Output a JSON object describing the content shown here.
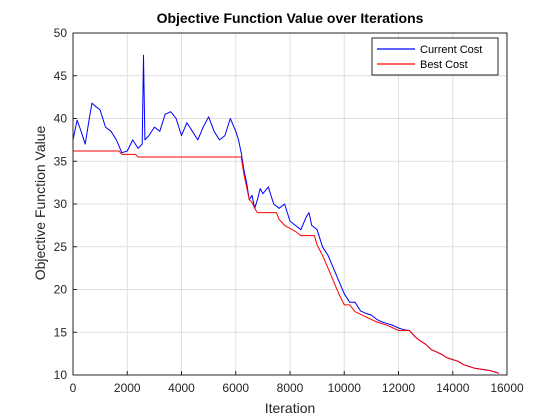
{
  "chart_data": {
    "type": "line",
    "title": "Objective Function Value over Iterations",
    "xlabel": "Iteration",
    "ylabel": "Objective Function Value",
    "xlim": [
      0,
      16000
    ],
    "ylim": [
      10,
      50
    ],
    "x_ticks": [
      0,
      2000,
      4000,
      6000,
      8000,
      10000,
      12000,
      14000,
      16000
    ],
    "y_ticks": [
      10,
      15,
      20,
      25,
      30,
      35,
      40,
      45,
      50
    ],
    "grid": true,
    "legend_position": "top-right",
    "series": [
      {
        "name": "Current Cost",
        "color": "#0000ff",
        "x": [
          0,
          150,
          300,
          450,
          600,
          700,
          800,
          1000,
          1200,
          1400,
          1600,
          1800,
          2000,
          2200,
          2400,
          2550,
          2600,
          2650,
          2800,
          3000,
          3200,
          3400,
          3600,
          3800,
          4000,
          4200,
          4400,
          4600,
          4800,
          5000,
          5200,
          5400,
          5600,
          5800,
          6000,
          6100,
          6200,
          6300,
          6400,
          6500,
          6600,
          6700,
          6800,
          6900,
          7000,
          7200,
          7400,
          7600,
          7800,
          8000,
          8200,
          8400,
          8600,
          8700,
          8800,
          9000,
          9200,
          9400,
          9600,
          9800,
          10000,
          10200,
          10400,
          10600,
          10800,
          11000,
          11200,
          11400,
          11600,
          11800,
          12000,
          12200,
          12400,
          12600,
          12800,
          13000,
          13200,
          13400,
          13600,
          13800,
          14000,
          14200,
          14400,
          14600,
          14800,
          15000,
          15200,
          15400,
          15600,
          15700
        ],
        "y": [
          37.5,
          39.8,
          38.5,
          37.0,
          40.0,
          41.8,
          41.5,
          41.0,
          39.0,
          38.5,
          37.5,
          36.0,
          36.2,
          37.5,
          36.5,
          37.0,
          47.4,
          37.5,
          38.0,
          39.0,
          38.5,
          40.5,
          40.8,
          40.0,
          38.0,
          39.5,
          38.5,
          37.5,
          39.0,
          40.2,
          38.5,
          37.5,
          38.0,
          40.0,
          38.5,
          37.5,
          36.0,
          34.0,
          32.5,
          30.5,
          31.0,
          29.5,
          30.5,
          31.8,
          31.2,
          32.0,
          30.0,
          29.5,
          30.0,
          28.0,
          27.5,
          27.0,
          28.5,
          29.0,
          27.5,
          27.0,
          25.0,
          24.0,
          22.5,
          21.0,
          19.5,
          18.5,
          18.5,
          17.5,
          17.2,
          17.0,
          16.5,
          16.2,
          16.0,
          15.8,
          15.5,
          15.3,
          15.2,
          14.5,
          14.0,
          13.6,
          13.0,
          12.7,
          12.4,
          12.0,
          11.8,
          11.6,
          11.2,
          11.0,
          10.8,
          10.7,
          10.6,
          10.5,
          10.3,
          10.2
        ]
      },
      {
        "name": "Best Cost",
        "color": "#ff0000",
        "x": [
          0,
          1700,
          1800,
          2300,
          2400,
          6200,
          6300,
          6400,
          6500,
          6600,
          6700,
          6800,
          6900,
          7000,
          7500,
          7600,
          7800,
          8200,
          8400,
          8900,
          9000,
          9200,
          9400,
          9600,
          9800,
          10000,
          10200,
          10400,
          10600,
          10800,
          11000,
          11200,
          11400,
          11600,
          11800,
          12000,
          12400,
          12600,
          12800,
          13000,
          13200,
          13400,
          13600,
          13800,
          14000,
          14200,
          14400,
          14600,
          14800,
          15000,
          15200,
          15400,
          15600,
          15700
        ],
        "y": [
          36.2,
          36.2,
          35.8,
          35.8,
          35.5,
          35.5,
          33.5,
          32.0,
          30.5,
          30.2,
          29.5,
          29.0,
          29.0,
          29.0,
          29.0,
          28.2,
          27.5,
          26.8,
          26.3,
          26.3,
          25.2,
          24.0,
          22.5,
          21.0,
          19.5,
          18.2,
          18.2,
          17.4,
          17.1,
          16.8,
          16.5,
          16.2,
          16.0,
          15.8,
          15.5,
          15.2,
          15.2,
          14.5,
          14.0,
          13.6,
          13.0,
          12.7,
          12.4,
          12.0,
          11.8,
          11.6,
          11.2,
          11.0,
          10.8,
          10.7,
          10.6,
          10.5,
          10.3,
          10.2
        ]
      }
    ]
  },
  "colors": {
    "axes": "#262626",
    "grid": "#dfdfdf",
    "background": "#ffffff"
  }
}
